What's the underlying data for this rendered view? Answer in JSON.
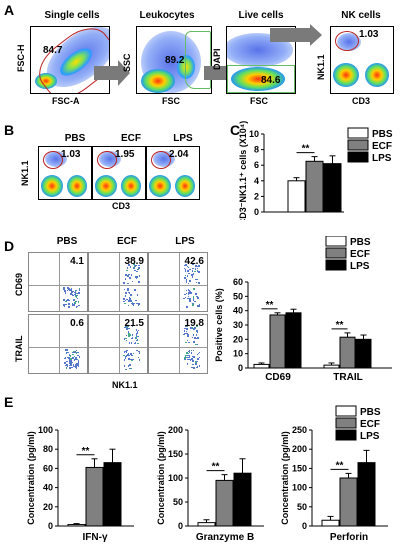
{
  "panels": {
    "A": {
      "letter": "A",
      "plots": [
        {
          "title": "Single cells",
          "xlabel": "FSC-A",
          "ylabel": "FSC-H",
          "value": "84.7"
        },
        {
          "title": "Leukocytes",
          "xlabel": "FSC",
          "ylabel": "SSC",
          "value": "89.2"
        },
        {
          "title": "Live cells",
          "xlabel": "FSC",
          "ylabel": "DAPI",
          "value": "84.6"
        },
        {
          "title": "NK cells",
          "xlabel": "CD3",
          "ylabel": "NK1.1",
          "value": "1.03"
        }
      ]
    },
    "B": {
      "letter": "B",
      "plots": [
        {
          "title": "PBS",
          "value": "1.03"
        },
        {
          "title": "ECF",
          "value": "1.95"
        },
        {
          "title": "LPS",
          "value": "2.04"
        }
      ],
      "xlabel": "CD3",
      "ylabel": "NK1.1"
    },
    "C": {
      "letter": "C"
    },
    "D": {
      "letter": "D",
      "columns": [
        "PBS",
        "ECF",
        "LPS"
      ],
      "rows": [
        {
          "label": "CD69",
          "values": [
            "4.1",
            "38.9",
            "42.6"
          ]
        },
        {
          "label": "TRAIL",
          "values": [
            "0.6",
            "21.5",
            "19.8"
          ]
        }
      ],
      "xlabel": "NK1.1"
    },
    "E": {
      "letter": "E"
    }
  },
  "legend": {
    "items": [
      "PBS",
      "ECF",
      "LPS"
    ],
    "colors": [
      "#ffffff",
      "#808080",
      "#000000"
    ]
  },
  "chart_data": [
    {
      "panel": "C",
      "type": "bar",
      "categories": [
        ""
      ],
      "series": [
        {
          "name": "PBS",
          "values": [
            4.0
          ],
          "errors": [
            0.4
          ]
        },
        {
          "name": "ECF",
          "values": [
            6.5
          ],
          "errors": [
            0.6
          ]
        },
        {
          "name": "LPS",
          "values": [
            6.2
          ],
          "errors": [
            1.0
          ]
        }
      ],
      "ylabel": "CD3⁻NK1.1⁺ cells (X10⁴)",
      "ylim": [
        0,
        10
      ],
      "yticks": [
        0,
        2,
        4,
        6,
        8,
        10
      ],
      "significance": [
        {
          "between": [
            "PBS",
            "ECF"
          ],
          "label": "**"
        }
      ]
    },
    {
      "panel": "D",
      "type": "bar",
      "categories": [
        "CD69",
        "TRAIL"
      ],
      "series": [
        {
          "name": "PBS",
          "values": [
            2.5,
            2.0
          ],
          "errors": [
            1.0,
            1.5
          ]
        },
        {
          "name": "ECF",
          "values": [
            37.0,
            21.5
          ],
          "errors": [
            1.5,
            3.0
          ]
        },
        {
          "name": "LPS",
          "values": [
            38.5,
            20.0
          ],
          "errors": [
            2.5,
            3.0
          ]
        }
      ],
      "ylabel": "Positive cells (%)",
      "ylim": [
        0,
        60
      ],
      "yticks": [
        0,
        10,
        20,
        30,
        40,
        50,
        60
      ],
      "significance": [
        {
          "category": "CD69",
          "label": "**"
        },
        {
          "category": "TRAIL",
          "label": "**"
        }
      ]
    },
    {
      "panel": "E1",
      "type": "bar",
      "categories": [
        "IFN-γ"
      ],
      "series": [
        {
          "name": "PBS",
          "values": [
            1.5
          ],
          "errors": [
            1.0
          ]
        },
        {
          "name": "ECF",
          "values": [
            61
          ],
          "errors": [
            9
          ]
        },
        {
          "name": "LPS",
          "values": [
            66
          ],
          "errors": [
            14
          ]
        }
      ],
      "ylabel": "Concentration (pg/ml)",
      "ylim": [
        0,
        100
      ],
      "yticks": [
        0,
        20,
        40,
        60,
        80,
        100
      ],
      "significance": [
        {
          "between": [
            "PBS",
            "ECF"
          ],
          "label": "**"
        }
      ]
    },
    {
      "panel": "E2",
      "type": "bar",
      "categories": [
        "Granzyme B"
      ],
      "series": [
        {
          "name": "PBS",
          "values": [
            7
          ],
          "errors": [
            6
          ]
        },
        {
          "name": "ECF",
          "values": [
            95
          ],
          "errors": [
            12
          ]
        },
        {
          "name": "LPS",
          "values": [
            110
          ],
          "errors": [
            30
          ]
        }
      ],
      "ylabel": "Concentration (pg/ml)",
      "ylim": [
        0,
        200
      ],
      "yticks": [
        0,
        50,
        100,
        150,
        200
      ],
      "significance": [
        {
          "between": [
            "PBS",
            "ECF"
          ],
          "label": "**"
        }
      ]
    },
    {
      "panel": "E3",
      "type": "bar",
      "categories": [
        "Perforin"
      ],
      "series": [
        {
          "name": "PBS",
          "values": [
            15
          ],
          "errors": [
            10
          ]
        },
        {
          "name": "ECF",
          "values": [
            125
          ],
          "errors": [
            12
          ]
        },
        {
          "name": "LPS",
          "values": [
            165
          ],
          "errors": [
            32
          ]
        }
      ],
      "ylabel": "Concentration (pg/ml)",
      "ylim": [
        0,
        250
      ],
      "yticks": [
        0,
        50,
        100,
        150,
        200,
        250
      ],
      "significance": [
        {
          "between": [
            "PBS",
            "ECF"
          ],
          "label": "**"
        }
      ]
    }
  ]
}
